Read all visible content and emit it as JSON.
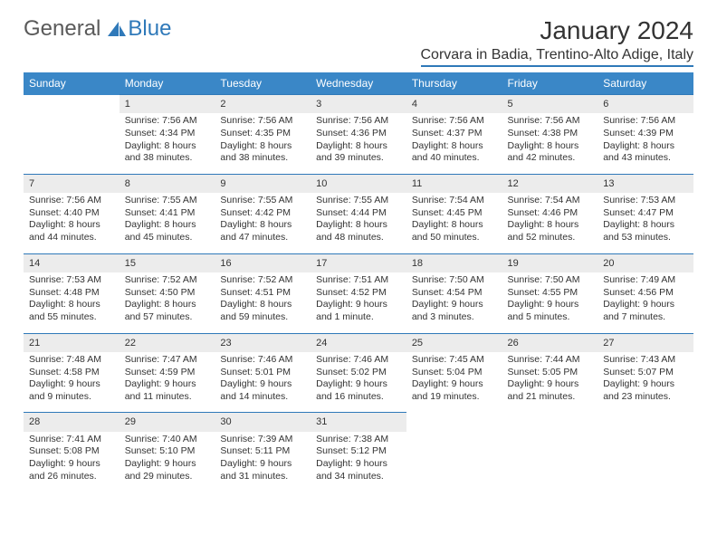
{
  "brand": {
    "word1": "General",
    "word2": "Blue"
  },
  "title": "January 2024",
  "location": "Corvara in Badia, Trentino-Alto Adige, Italy",
  "colors": {
    "header_bg": "#3a87c7",
    "rule": "#2f79b9",
    "daynum_bg": "#ececec",
    "text": "#333333"
  },
  "weekdays": [
    "Sunday",
    "Monday",
    "Tuesday",
    "Wednesday",
    "Thursday",
    "Friday",
    "Saturday"
  ],
  "weeks": [
    [
      null,
      {
        "n": "1",
        "sunrise": "7:56 AM",
        "sunset": "4:34 PM",
        "daylight": "8 hours and 38 minutes."
      },
      {
        "n": "2",
        "sunrise": "7:56 AM",
        "sunset": "4:35 PM",
        "daylight": "8 hours and 38 minutes."
      },
      {
        "n": "3",
        "sunrise": "7:56 AM",
        "sunset": "4:36 PM",
        "daylight": "8 hours and 39 minutes."
      },
      {
        "n": "4",
        "sunrise": "7:56 AM",
        "sunset": "4:37 PM",
        "daylight": "8 hours and 40 minutes."
      },
      {
        "n": "5",
        "sunrise": "7:56 AM",
        "sunset": "4:38 PM",
        "daylight": "8 hours and 42 minutes."
      },
      {
        "n": "6",
        "sunrise": "7:56 AM",
        "sunset": "4:39 PM",
        "daylight": "8 hours and 43 minutes."
      }
    ],
    [
      {
        "n": "7",
        "sunrise": "7:56 AM",
        "sunset": "4:40 PM",
        "daylight": "8 hours and 44 minutes."
      },
      {
        "n": "8",
        "sunrise": "7:55 AM",
        "sunset": "4:41 PM",
        "daylight": "8 hours and 45 minutes."
      },
      {
        "n": "9",
        "sunrise": "7:55 AM",
        "sunset": "4:42 PM",
        "daylight": "8 hours and 47 minutes."
      },
      {
        "n": "10",
        "sunrise": "7:55 AM",
        "sunset": "4:44 PM",
        "daylight": "8 hours and 48 minutes."
      },
      {
        "n": "11",
        "sunrise": "7:54 AM",
        "sunset": "4:45 PM",
        "daylight": "8 hours and 50 minutes."
      },
      {
        "n": "12",
        "sunrise": "7:54 AM",
        "sunset": "4:46 PM",
        "daylight": "8 hours and 52 minutes."
      },
      {
        "n": "13",
        "sunrise": "7:53 AM",
        "sunset": "4:47 PM",
        "daylight": "8 hours and 53 minutes."
      }
    ],
    [
      {
        "n": "14",
        "sunrise": "7:53 AM",
        "sunset": "4:48 PM",
        "daylight": "8 hours and 55 minutes."
      },
      {
        "n": "15",
        "sunrise": "7:52 AM",
        "sunset": "4:50 PM",
        "daylight": "8 hours and 57 minutes."
      },
      {
        "n": "16",
        "sunrise": "7:52 AM",
        "sunset": "4:51 PM",
        "daylight": "8 hours and 59 minutes."
      },
      {
        "n": "17",
        "sunrise": "7:51 AM",
        "sunset": "4:52 PM",
        "daylight": "9 hours and 1 minute."
      },
      {
        "n": "18",
        "sunrise": "7:50 AM",
        "sunset": "4:54 PM",
        "daylight": "9 hours and 3 minutes."
      },
      {
        "n": "19",
        "sunrise": "7:50 AM",
        "sunset": "4:55 PM",
        "daylight": "9 hours and 5 minutes."
      },
      {
        "n": "20",
        "sunrise": "7:49 AM",
        "sunset": "4:56 PM",
        "daylight": "9 hours and 7 minutes."
      }
    ],
    [
      {
        "n": "21",
        "sunrise": "7:48 AM",
        "sunset": "4:58 PM",
        "daylight": "9 hours and 9 minutes."
      },
      {
        "n": "22",
        "sunrise": "7:47 AM",
        "sunset": "4:59 PM",
        "daylight": "9 hours and 11 minutes."
      },
      {
        "n": "23",
        "sunrise": "7:46 AM",
        "sunset": "5:01 PM",
        "daylight": "9 hours and 14 minutes."
      },
      {
        "n": "24",
        "sunrise": "7:46 AM",
        "sunset": "5:02 PM",
        "daylight": "9 hours and 16 minutes."
      },
      {
        "n": "25",
        "sunrise": "7:45 AM",
        "sunset": "5:04 PM",
        "daylight": "9 hours and 19 minutes."
      },
      {
        "n": "26",
        "sunrise": "7:44 AM",
        "sunset": "5:05 PM",
        "daylight": "9 hours and 21 minutes."
      },
      {
        "n": "27",
        "sunrise": "7:43 AM",
        "sunset": "5:07 PM",
        "daylight": "9 hours and 23 minutes."
      }
    ],
    [
      {
        "n": "28",
        "sunrise": "7:41 AM",
        "sunset": "5:08 PM",
        "daylight": "9 hours and 26 minutes."
      },
      {
        "n": "29",
        "sunrise": "7:40 AM",
        "sunset": "5:10 PM",
        "daylight": "9 hours and 29 minutes."
      },
      {
        "n": "30",
        "sunrise": "7:39 AM",
        "sunset": "5:11 PM",
        "daylight": "9 hours and 31 minutes."
      },
      {
        "n": "31",
        "sunrise": "7:38 AM",
        "sunset": "5:12 PM",
        "daylight": "9 hours and 34 minutes."
      },
      null,
      null,
      null
    ]
  ]
}
